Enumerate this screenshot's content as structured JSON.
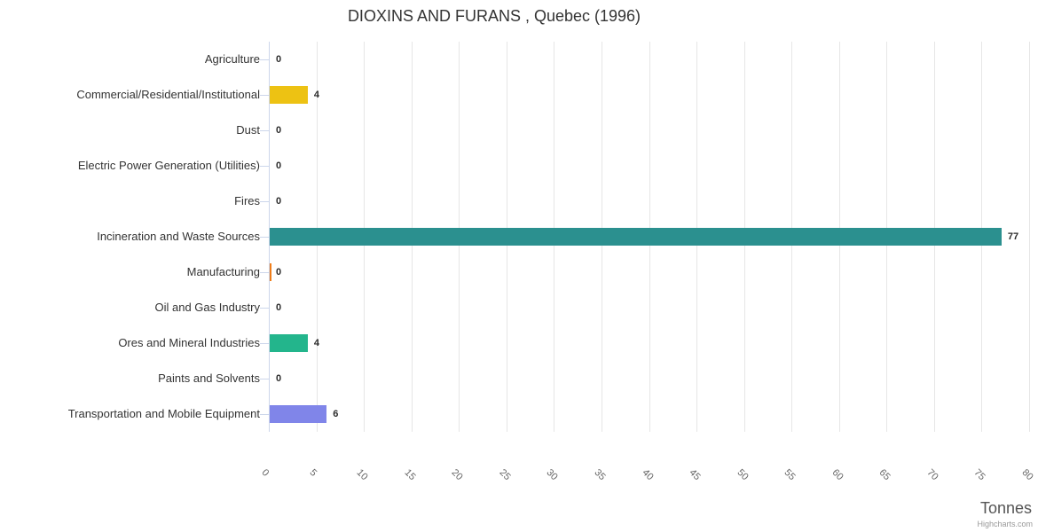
{
  "chart": {
    "title": "DIOXINS AND FURANS , Quebec (1996)",
    "x_axis_title": "Tonnes",
    "credits_label": "Highcharts.com"
  },
  "chart_data": {
    "type": "bar",
    "orientation": "horizontal",
    "title": "DIOXINS AND FURANS , Quebec (1996)",
    "xlabel": "Tonnes",
    "ylabel": "",
    "xlim": [
      0,
      80
    ],
    "xticks": [
      0,
      5,
      10,
      15,
      20,
      25,
      30,
      35,
      40,
      45,
      50,
      55,
      60,
      65,
      70,
      75,
      80
    ],
    "grid": true,
    "legend": false,
    "categories": [
      "Agriculture",
      "Commercial/Residential/Institutional",
      "Dust",
      "Electric Power Generation (Utilities)",
      "Fires",
      "Incineration and Waste Sources",
      "Manufacturing",
      "Oil and Gas Industry",
      "Ores and Mineral Industries",
      "Paints and Solvents",
      "Transportation and Mobile Equipment"
    ],
    "values": [
      0,
      4,
      0,
      0,
      0,
      77,
      0,
      0,
      4,
      0,
      6
    ],
    "points": [
      {
        "category": "Agriculture",
        "value": 0,
        "label": "0",
        "color": null,
        "hairline_bar": false
      },
      {
        "category": "Commercial/Residential/Institutional",
        "value": 4,
        "label": "4",
        "color": "#edc213",
        "hairline_bar": false
      },
      {
        "category": "Dust",
        "value": 0,
        "label": "0",
        "color": null,
        "hairline_bar": false
      },
      {
        "category": "Electric Power Generation (Utilities)",
        "value": 0,
        "label": "0",
        "color": null,
        "hairline_bar": false
      },
      {
        "category": "Fires",
        "value": 0,
        "label": "0",
        "color": null,
        "hairline_bar": false
      },
      {
        "category": "Incineration and Waste Sources",
        "value": 77,
        "label": "77",
        "color": "#2b908f",
        "hairline_bar": false
      },
      {
        "category": "Manufacturing",
        "value": 0,
        "label": "0",
        "color": "#ef7d19",
        "hairline_bar": true
      },
      {
        "category": "Oil and Gas Industry",
        "value": 0,
        "label": "0",
        "color": null,
        "hairline_bar": false
      },
      {
        "category": "Ores and Mineral Industries",
        "value": 4,
        "label": "4",
        "color": "#23b58c",
        "hairline_bar": false
      },
      {
        "category": "Paints and Solvents",
        "value": 0,
        "label": "0",
        "color": null,
        "hairline_bar": false
      },
      {
        "category": "Transportation and Mobile Equipment",
        "value": 6,
        "label": "6",
        "color": "#8085e9",
        "hairline_bar": false
      }
    ],
    "styles": {
      "grid_color": "#e6e6e6",
      "axis_line_color": "#ccd6eb",
      "title_color": "#333333",
      "category_label_color": "#333333",
      "tick_label_color": "#666666",
      "data_label_color": "#2b2b2b",
      "axis_title_color": "#555555",
      "credits_color": "#999999",
      "background": "#ffffff"
    }
  }
}
